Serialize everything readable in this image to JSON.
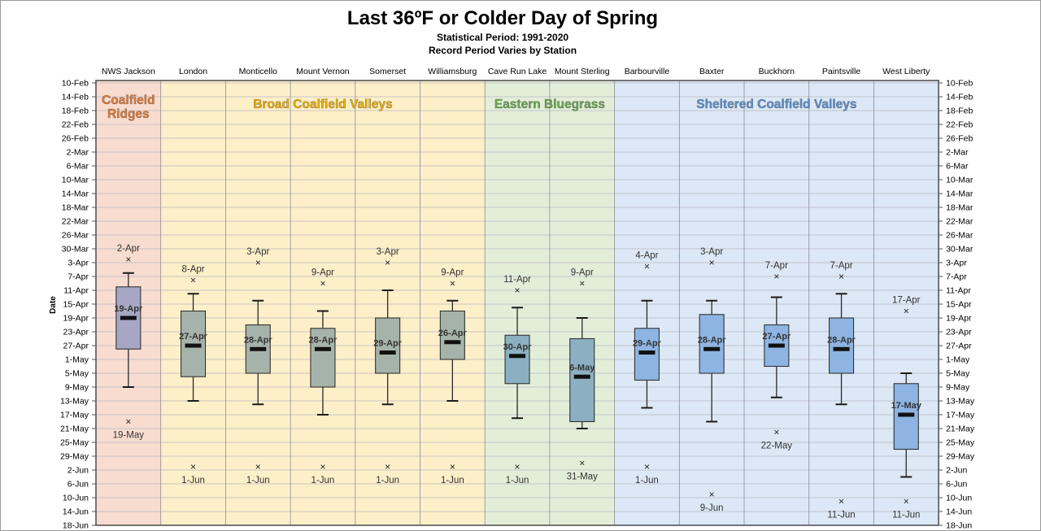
{
  "chart_data": {
    "type": "box",
    "title": "Last 36ºF or Colder Day of Spring",
    "subtitle_1": "Statistical Period: 1991-2020",
    "subtitle_2": "Record Period Varies by Station",
    "ylabel": "Date",
    "y_ticks": [
      "10-Feb",
      "14-Feb",
      "18-Feb",
      "22-Feb",
      "26-Feb",
      "2-Mar",
      "6-Mar",
      "10-Mar",
      "14-Mar",
      "18-Mar",
      "22-Mar",
      "26-Mar",
      "30-Mar",
      "3-Apr",
      "7-Apr",
      "11-Apr",
      "15-Apr",
      "19-Apr",
      "23-Apr",
      "27-Apr",
      "1-May",
      "5-May",
      "9-May",
      "13-May",
      "17-May",
      "21-May",
      "25-May",
      "29-May",
      "2-Jun",
      "6-Jun",
      "10-Jun",
      "14-Jun",
      "18-Jun"
    ],
    "ylim": [
      "10-Feb",
      "18-Jun"
    ],
    "grid": true,
    "groups": [
      {
        "label": "Coalfield Ridges",
        "label_lines": [
          "Coalfield",
          "Ridges"
        ],
        "color": "#f8dccf",
        "label_color": "#e8782e",
        "stations": [
          "NWS Jackson"
        ]
      },
      {
        "label": "Broad Coalfield Valleys",
        "label_lines": [
          "Broad Coalfield Valleys"
        ],
        "color": "#fdefc8",
        "label_color": "#f0b000",
        "stations": [
          "London",
          "Monticello",
          "Mount Vernon",
          "Somerset",
          "Williamsburg"
        ]
      },
      {
        "label": "Eastern Bluegrass",
        "label_lines": [
          "Eastern Bluegrass"
        ],
        "color": "#e3eed9",
        "label_color": "#6aa84f",
        "stations": [
          "Cave Run Lake",
          "Mount Sterling"
        ]
      },
      {
        "label": "Sheltered Coalfield Valleys",
        "label_lines": [
          "Sheltered Coalfield Valleys"
        ],
        "color": "#dce8f5",
        "label_color": "#5b8fd0",
        "stations": [
          "Barbourville",
          "Baxter",
          "Buckhorn",
          "Paintsville",
          "West Liberty"
        ]
      }
    ],
    "stations": [
      {
        "name": "NWS Jackson",
        "whisker_low": "6-Apr",
        "q1": "10-Apr",
        "median": "19-Apr",
        "median_label": "19-Apr",
        "q3": "28-Apr",
        "whisker_high": "9-May",
        "record_early": "2-Apr",
        "record_late": "19-May",
        "box_color": "#a5a7c4"
      },
      {
        "name": "London",
        "whisker_low": "12-Apr",
        "q1": "17-Apr",
        "median": "27-Apr",
        "median_label": "27-Apr",
        "q3": "6-May",
        "whisker_high": "13-May",
        "record_early": "8-Apr",
        "record_late": "1-Jun",
        "box_color": "#a6b3aa"
      },
      {
        "name": "Monticello",
        "whisker_low": "14-Apr",
        "q1": "21-Apr",
        "median": "28-Apr",
        "median_label": "28-Apr",
        "q3": "5-May",
        "whisker_high": "14-May",
        "record_early": "3-Apr",
        "record_late": "1-Jun",
        "box_color": "#a6b3aa"
      },
      {
        "name": "Mount Vernon",
        "whisker_low": "17-Apr",
        "q1": "22-Apr",
        "median": "28-Apr",
        "median_label": "28-Apr",
        "q3": "9-May",
        "whisker_high": "17-May",
        "record_early": "9-Apr",
        "record_late": "1-Jun",
        "box_color": "#a6b3aa"
      },
      {
        "name": "Somerset",
        "whisker_low": "11-Apr",
        "q1": "19-Apr",
        "median": "29-Apr",
        "median_label": "29-Apr",
        "q3": "5-May",
        "whisker_high": "14-May",
        "record_early": "3-Apr",
        "record_late": "1-Jun",
        "box_color": "#a6b3aa"
      },
      {
        "name": "Williamsburg",
        "whisker_low": "14-Apr",
        "q1": "17-Apr",
        "median": "26-Apr",
        "median_label": "26-Apr",
        "q3": "1-May",
        "whisker_high": "13-May",
        "record_early": "9-Apr",
        "record_late": "1-Jun",
        "box_color": "#a6b3aa"
      },
      {
        "name": "Cave Run Lake",
        "whisker_low": "16-Apr",
        "q1": "24-Apr",
        "median": "30-Apr",
        "median_label": "30-Apr",
        "q3": "8-May",
        "whisker_high": "18-May",
        "record_early": "11-Apr",
        "record_late": "1-Jun",
        "box_color": "#8bb0c2"
      },
      {
        "name": "Mount Sterling",
        "whisker_low": "19-Apr",
        "q1": "25-Apr",
        "median": "6-May",
        "median_label": "6-May",
        "q3": "19-May",
        "whisker_high": "21-May",
        "record_early": "9-Apr",
        "record_late": "31-May",
        "box_color": "#8bb0c2"
      },
      {
        "name": "Barbourville",
        "whisker_low": "14-Apr",
        "q1": "22-Apr",
        "median": "29-Apr",
        "median_label": "29-Apr",
        "q3": "7-May",
        "whisker_high": "15-May",
        "record_early": "4-Apr",
        "record_late": "1-Jun",
        "box_color": "#8db4e2"
      },
      {
        "name": "Baxter",
        "whisker_low": "14-Apr",
        "q1": "18-Apr",
        "median": "28-Apr",
        "median_label": "28-Apr",
        "q3": "5-May",
        "whisker_high": "19-May",
        "record_early": "3-Apr",
        "record_late": "9-Jun",
        "box_color": "#8db4e2"
      },
      {
        "name": "Buckhorn",
        "whisker_low": "13-Apr",
        "q1": "21-Apr",
        "median": "27-Apr",
        "median_label": "27-Apr",
        "q3": "3-May",
        "whisker_high": "12-May",
        "record_early": "7-Apr",
        "record_late": "22-May",
        "box_color": "#8db4e2"
      },
      {
        "name": "Paintsville",
        "whisker_low": "12-Apr",
        "q1": "19-Apr",
        "median": "28-Apr",
        "median_label": "28-Apr",
        "q3": "5-May",
        "whisker_high": "14-May",
        "record_early": "7-Apr",
        "record_late": "11-Jun",
        "box_color": "#8db4e2"
      },
      {
        "name": "West Liberty",
        "whisker_low": "5-May",
        "q1": "8-May",
        "median": "17-May",
        "median_label": "17-May",
        "q3": "27-May",
        "whisker_high": "4-Jun",
        "record_early": "17-Apr",
        "record_late": "11-Jun",
        "box_color": "#8db4e2"
      }
    ]
  }
}
